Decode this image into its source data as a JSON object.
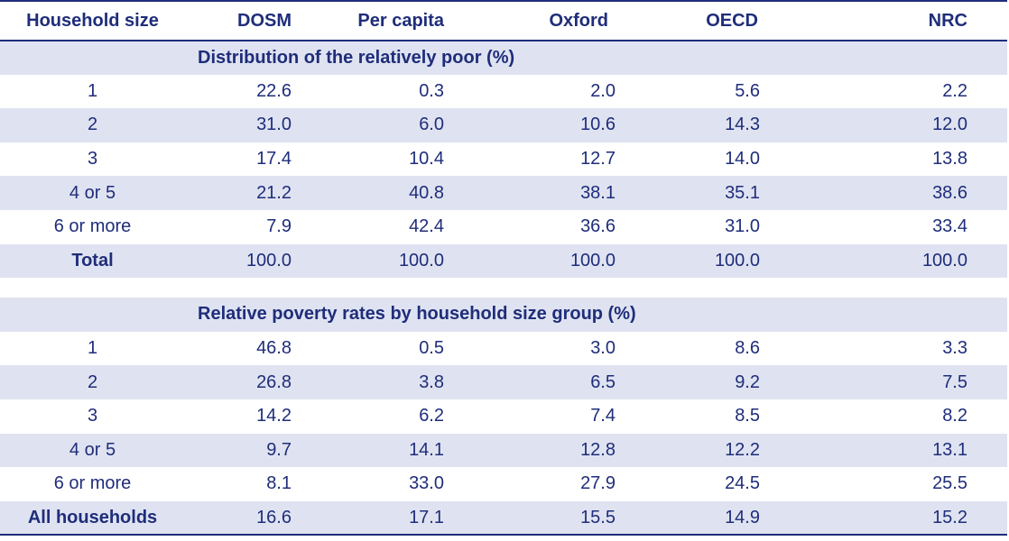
{
  "columns": [
    "Household size",
    "DOSM",
    "Per capita",
    "Oxford",
    "OECD",
    "NRC"
  ],
  "sections": [
    {
      "title": "Distribution of the relatively poor (%)",
      "rows": [
        {
          "label": "1",
          "values": [
            "22.6",
            "0.3",
            "2.0",
            "5.6",
            "2.2"
          ],
          "bold": false
        },
        {
          "label": "2",
          "values": [
            "31.0",
            "6.0",
            "10.6",
            "14.3",
            "12.0"
          ],
          "bold": false
        },
        {
          "label": "3",
          "values": [
            "17.4",
            "10.4",
            "12.7",
            "14.0",
            "13.8"
          ],
          "bold": false
        },
        {
          "label": "4 or 5",
          "values": [
            "21.2",
            "40.8",
            "38.1",
            "35.1",
            "38.6"
          ],
          "bold": false
        },
        {
          "label": "6 or more",
          "values": [
            "7.9",
            "42.4",
            "36.6",
            "31.0",
            "33.4"
          ],
          "bold": false
        },
        {
          "label": "Total",
          "values": [
            "100.0",
            "100.0",
            "100.0",
            "100.0",
            "100.0"
          ],
          "bold": true
        }
      ]
    },
    {
      "title": "Relative poverty rates by household size group (%)",
      "rows": [
        {
          "label": "1",
          "values": [
            "46.8",
            "0.5",
            "3.0",
            "8.6",
            "3.3"
          ],
          "bold": false
        },
        {
          "label": "2",
          "values": [
            "26.8",
            "3.8",
            "6.5",
            "9.2",
            "7.5"
          ],
          "bold": false
        },
        {
          "label": "3",
          "values": [
            "14.2",
            "6.2",
            "7.4",
            "8.5",
            "8.2"
          ],
          "bold": false
        },
        {
          "label": "4 or 5",
          "values": [
            "9.7",
            "14.1",
            "12.8",
            "12.2",
            "13.1"
          ],
          "bold": false
        },
        {
          "label": "6 or more",
          "values": [
            "8.1",
            "33.0",
            "27.9",
            "24.5",
            "25.5"
          ],
          "bold": false
        },
        {
          "label": "All households",
          "values": [
            "16.6",
            "17.1",
            "15.5",
            "14.9",
            "15.2"
          ],
          "bold": true
        }
      ]
    }
  ],
  "colors": {
    "text": "#1f2d7a",
    "band": "#dfe3f1",
    "rule": "#1f2d7a"
  }
}
